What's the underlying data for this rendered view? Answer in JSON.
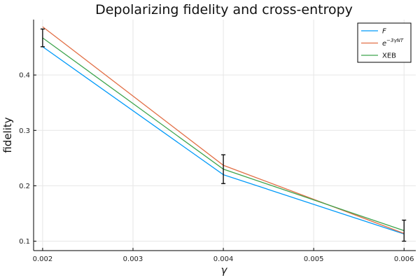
{
  "chart_data": {
    "type": "line",
    "title": "Depolarizing fidelity and cross-entropy",
    "xlabel": "γ",
    "ylabel": "fidelity",
    "xlim": [
      0.0019,
      0.00613
    ],
    "ylim": [
      0.083,
      0.5
    ],
    "xticks": [
      "0.002",
      "0.003",
      "0.004",
      "0.005",
      "0.006"
    ],
    "xtick_values": [
      0.002,
      0.003,
      0.004,
      0.005,
      0.006
    ],
    "yticks": [
      "0.1",
      "0.2",
      "0.3",
      "0.4"
    ],
    "ytick_values": [
      0.1,
      0.2,
      0.3,
      0.4
    ],
    "grid": true,
    "legend_position": "top-right",
    "x": [
      0.002,
      0.004,
      0.006
    ],
    "series": [
      {
        "name": "F",
        "color": "#009af9",
        "values": [
          0.451,
          0.22,
          0.113
        ]
      },
      {
        "name": "e",
        "name_exponent": "−3γNT",
        "color": "#e26f46",
        "values": [
          0.487,
          0.237,
          0.114
        ]
      },
      {
        "name": "XEB",
        "color": "#3ea44e",
        "values": [
          0.467,
          0.23,
          0.119
        ],
        "error": [
          0.016,
          0.026,
          0.019
        ]
      }
    ]
  }
}
